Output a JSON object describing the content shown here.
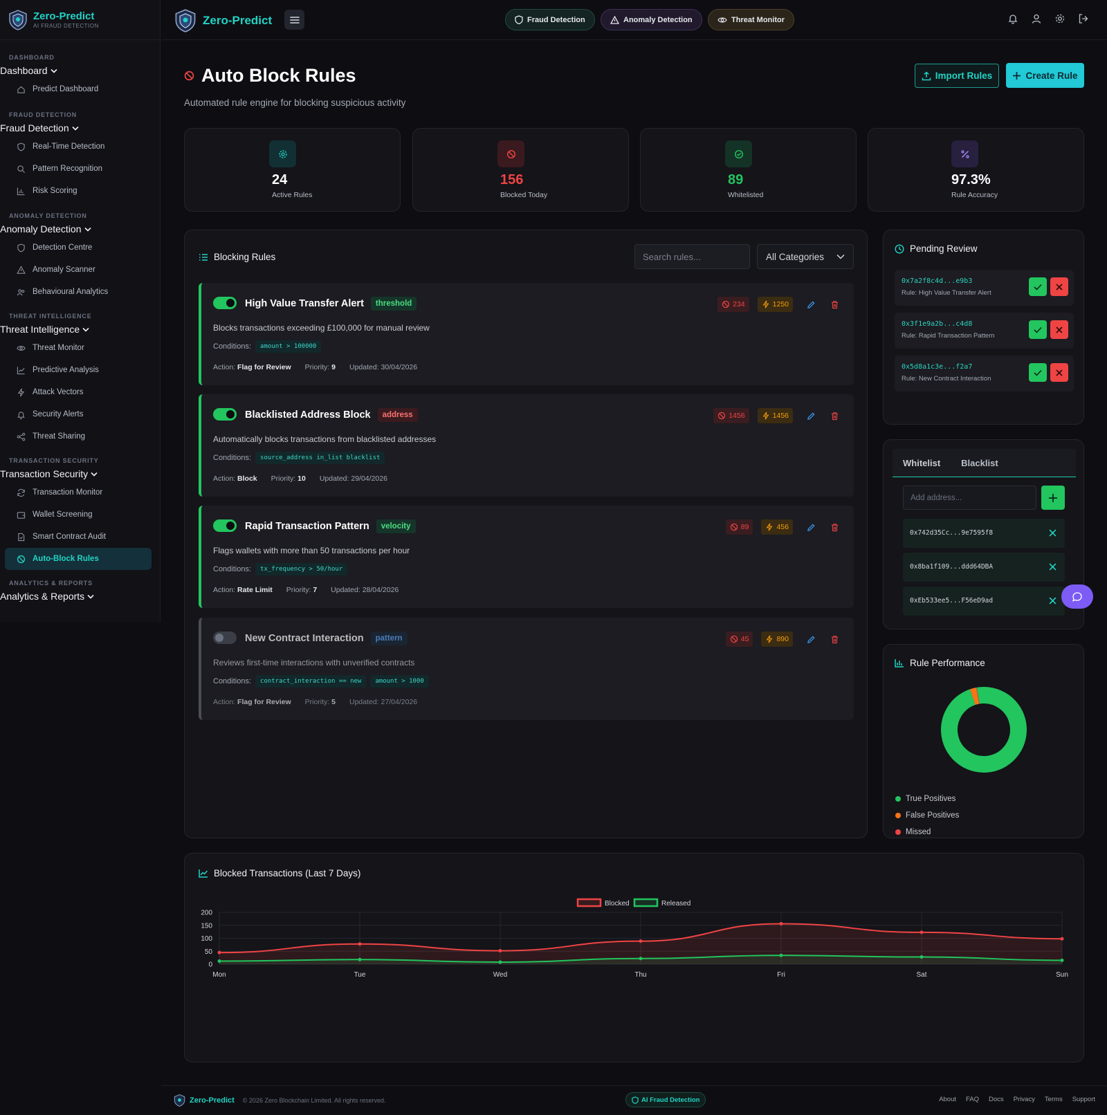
{
  "brand": {
    "name": "Zero-Predict",
    "tagline": "AI FRAUD DETECTION"
  },
  "sidebar": {
    "sections": [
      {
        "category": "Dashboard",
        "group": "Dashboard",
        "items": [
          {
            "label": "Predict Dashboard",
            "icon": "home-icon"
          }
        ]
      },
      {
        "category": "Fraud Detection",
        "group": "Fraud Detection",
        "items": [
          {
            "label": "Real-Time Detection",
            "icon": "shield-icon"
          },
          {
            "label": "Pattern Recognition",
            "icon": "search-icon"
          },
          {
            "label": "Risk Scoring",
            "icon": "bar-chart-icon"
          }
        ]
      },
      {
        "category": "Anomaly Detection",
        "group": "Anomaly Detection",
        "items": [
          {
            "label": "Detection Centre",
            "icon": "shield-icon"
          },
          {
            "label": "Anomaly Scanner",
            "icon": "warning-icon"
          },
          {
            "label": "Behavioural Analytics",
            "icon": "users-icon"
          }
        ]
      },
      {
        "category": "Threat Intelligence",
        "group": "Threat Intelligence",
        "items": [
          {
            "label": "Threat Monitor",
            "icon": "eye-icon"
          },
          {
            "label": "Predictive Analysis",
            "icon": "trend-icon"
          },
          {
            "label": "Attack Vectors",
            "icon": "bolt-icon"
          },
          {
            "label": "Security Alerts",
            "icon": "bell-icon"
          },
          {
            "label": "Threat Sharing",
            "icon": "share-icon"
          }
        ]
      },
      {
        "category": "Transaction Security",
        "group": "Transaction Security",
        "items": [
          {
            "label": "Transaction Monitor",
            "icon": "refresh-icon"
          },
          {
            "label": "Wallet Screening",
            "icon": "wallet-icon"
          },
          {
            "label": "Smart Contract Audit",
            "icon": "file-check-icon"
          },
          {
            "label": "Auto-Block Rules",
            "icon": "block-icon",
            "active": true
          }
        ]
      },
      {
        "category": "Analytics & Reports",
        "group": "Analytics & Reports",
        "items": []
      }
    ]
  },
  "topbar": {
    "brand": "Zero-Predict",
    "pills": [
      {
        "label": "Fraud Detection",
        "icon": "shield-icon"
      },
      {
        "label": "Anomaly Detection",
        "icon": "warning-icon"
      },
      {
        "label": "Threat Monitor",
        "icon": "eye-icon"
      }
    ],
    "icons": [
      "bell-icon",
      "user-icon",
      "gear-icon",
      "logout-icon"
    ]
  },
  "page": {
    "title": "Auto Block Rules",
    "subtitle": "Automated rule engine for blocking suspicious activity",
    "import_label": "Import Rules",
    "create_label": "Create Rule"
  },
  "stats": [
    {
      "value": "24",
      "label": "Active Rules",
      "color": "#ffffff",
      "icon": "gear-icon",
      "accent": "#22d3c5"
    },
    {
      "value": "156",
      "label": "Blocked Today",
      "color": "#ef4444",
      "icon": "block-icon",
      "accent": "#ef4444"
    },
    {
      "value": "89",
      "label": "Whitelisted",
      "color": "#22c55e",
      "icon": "check-circle-icon",
      "accent": "#22c55e"
    },
    {
      "value": "97.3%",
      "label": "Rule Accuracy",
      "color": "#ffffff",
      "icon": "percent-icon",
      "accent": "#a78bfa"
    }
  ],
  "rules_panel": {
    "title": "Blocking Rules",
    "search_placeholder": "Search rules...",
    "category_select": "All Categories",
    "conditions_label": "Conditions:",
    "action_label": "Action:",
    "priority_label": "Priority:",
    "updated_label": "Updated:",
    "rules": [
      {
        "name": "High Value Transfer Alert",
        "tag": "threshold",
        "tag_style": "green",
        "enabled": true,
        "description": "Blocks transactions exceeding £100,000 for manual review",
        "conditions": [
          "amount > 100000"
        ],
        "action": "Flag for Review",
        "priority": "9",
        "updated": "30/04/2026",
        "blocked": "234",
        "hits": "1250"
      },
      {
        "name": "Blacklisted Address Block",
        "tag": "address",
        "tag_style": "red",
        "enabled": true,
        "description": "Automatically blocks transactions from blacklisted addresses",
        "conditions": [
          "source_address in_list blacklist"
        ],
        "action": "Block",
        "priority": "10",
        "updated": "29/04/2026",
        "blocked": "1456",
        "hits": "1456"
      },
      {
        "name": "Rapid Transaction Pattern",
        "tag": "velocity",
        "tag_style": "green",
        "enabled": true,
        "description": "Flags wallets with more than 50 transactions per hour",
        "conditions": [
          "tx_frequency > 50/hour"
        ],
        "action": "Rate Limit",
        "priority": "7",
        "updated": "28/04/2026",
        "blocked": "89",
        "hits": "456"
      },
      {
        "name": "New Contract Interaction",
        "tag": "pattern",
        "tag_style": "blue",
        "enabled": false,
        "description": "Reviews first-time interactions with unverified contracts",
        "conditions": [
          "contract_interaction == new",
          "amount > 1000"
        ],
        "action": "Flag for Review",
        "priority": "5",
        "updated": "27/04/2026",
        "blocked": "45",
        "hits": "890"
      }
    ]
  },
  "pending": {
    "title": "Pending Review",
    "items": [
      {
        "address": "0x7a2f8c4d...e9b3",
        "rule": "Rule: High Value Transfer Alert"
      },
      {
        "address": "0x3f1e9a2b...c4d8",
        "rule": "Rule: Rapid Transaction Pattern"
      },
      {
        "address": "0x5d8a1c3e...f2a7",
        "rule": "Rule: New Contract Interaction"
      }
    ]
  },
  "lists": {
    "tabs": [
      "Whitelist",
      "Blacklist"
    ],
    "placeholder": "Add address...",
    "addresses": [
      "0x742d35Cc...9e7595f8",
      "0x8ba1f109...ddd64DBA",
      "0xEb533ee5...F56eD9ad"
    ]
  },
  "performance": {
    "title": "Rule Performance",
    "legend": [
      {
        "label": "True Positives",
        "color": "#22c55e"
      },
      {
        "label": "False Positives",
        "color": "#f97316"
      },
      {
        "label": "Missed",
        "color": "#ef4444"
      }
    ]
  },
  "chart_data": [
    {
      "type": "pie",
      "title": "Rule Performance",
      "labels": [
        "True Positives",
        "False Positives",
        "Missed"
      ],
      "values": [
        97.3,
        2.4,
        0.3
      ],
      "colors": [
        "#22c55e",
        "#f97316",
        "#ef4444"
      ]
    },
    {
      "type": "line",
      "title": "Blocked Transactions (Last 7 Days)",
      "categories": [
        "Mon",
        "Tue",
        "Wed",
        "Thu",
        "Fri",
        "Sat",
        "Sun"
      ],
      "series": [
        {
          "name": "Blocked",
          "values": [
            45,
            78,
            52,
            89,
            156,
            123,
            98
          ],
          "color": "#ef4444"
        },
        {
          "name": "Released",
          "values": [
            12,
            18,
            8,
            22,
            34,
            28,
            15
          ],
          "color": "#22c55e"
        }
      ],
      "ylim": [
        0,
        200
      ],
      "yticks": [
        0,
        50,
        100,
        150,
        200
      ],
      "legend": "top-center",
      "grid": true
    }
  ],
  "footer": {
    "brand": "Zero-Predict",
    "copyright": "© 2026 Zero Blockchain Limited. All rights reserved.",
    "badge": "AI Fraud Detection",
    "links": [
      "About",
      "FAQ",
      "Docs",
      "Privacy",
      "Terms",
      "Support"
    ]
  }
}
